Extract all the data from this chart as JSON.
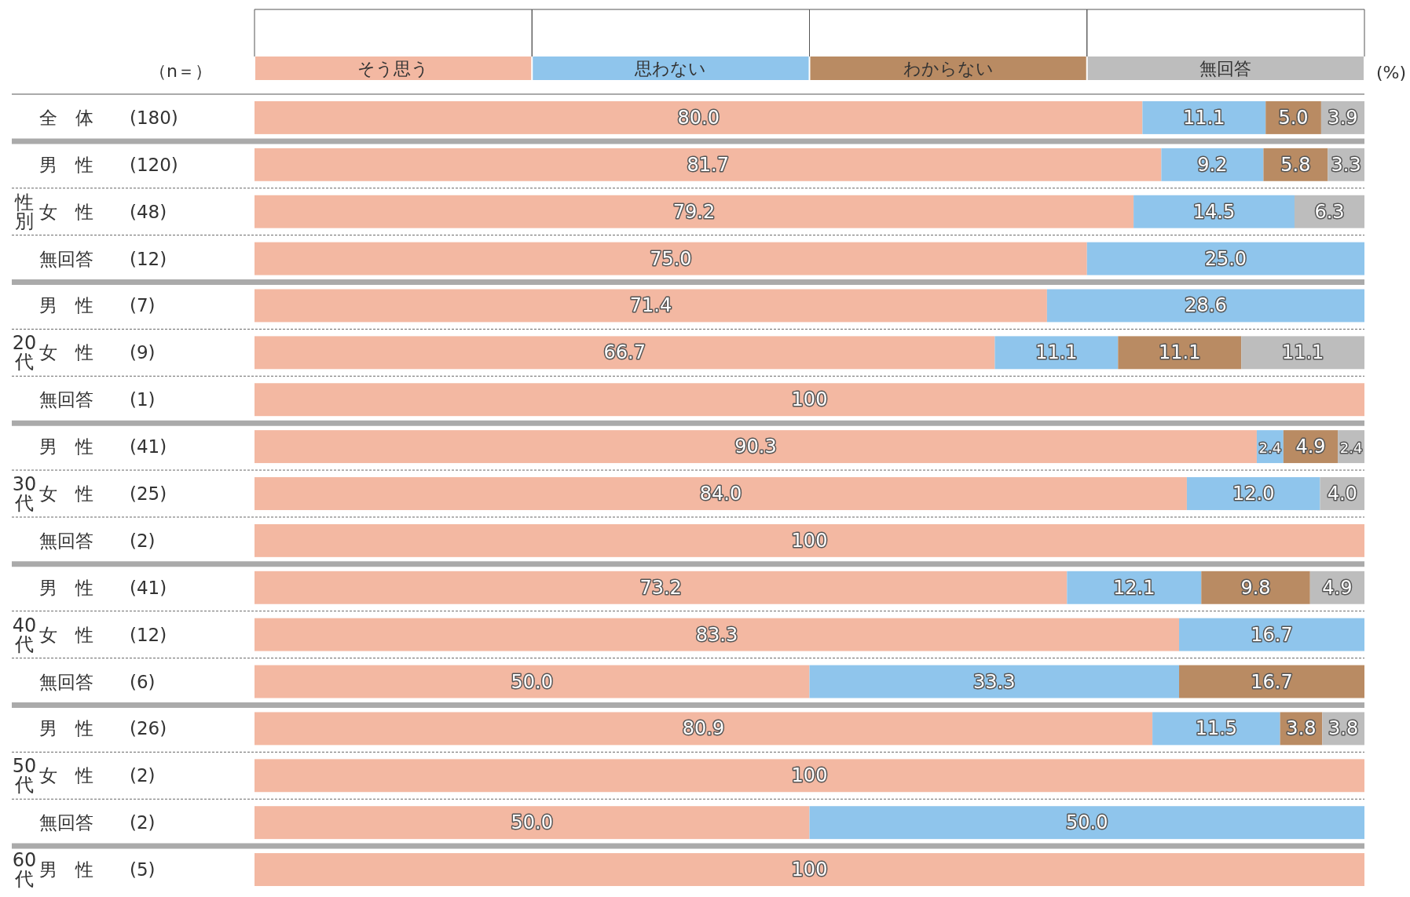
{
  "chart_data": {
    "type": "bar",
    "orientation": "horizontal",
    "stacked": true,
    "legend": "top",
    "tick_labels": "y",
    "xlim": [
      0,
      100
    ],
    "categories": [
      "全　体　　(180)",
      "男　性　　(120)",
      "女　性　　(48)",
      "無回答　　(12)",
      "男　性　　(7)",
      "女　性　　(9)",
      "無回答　　(1)",
      "男　性　　(41)",
      "女　性　　(25)",
      "無回答　　(2)",
      "男　性　　(41)",
      "女　性　　(12)",
      "無回答　　(6)",
      "男　性　　(26)",
      "女　性　　(2)",
      "無回答　　(2)",
      "男　性　　(5)"
    ],
    "series": [
      {
        "name": "そう思う",
        "color": "#f3b8a2",
        "values": [
          80.0,
          81.7,
          79.2,
          75.0,
          71.4,
          66.7,
          100,
          90.3,
          84.0,
          100,
          73.2,
          83.3,
          50.0,
          80.9,
          100,
          50.0,
          100
        ],
        "value_labels": [
          "80.0",
          "81.7",
          "79.2",
          "75.0",
          "71.4",
          "66.7",
          "100",
          "90.3",
          "84.0",
          "100",
          "73.2",
          "83.3",
          "50.0",
          "80.9",
          "100",
          "50.0",
          "100"
        ]
      },
      {
        "name": "思わない",
        "color": "#8fc5ec",
        "values": [
          11.1,
          9.2,
          14.5,
          25.0,
          28.6,
          11.1,
          null,
          2.4,
          12.0,
          null,
          12.1,
          16.7,
          33.3,
          11.5,
          null,
          50.0,
          null
        ],
        "value_labels": [
          "11.1",
          "9.2",
          "14.5",
          "25.0",
          "28.6",
          "11.1",
          null,
          "2.4",
          "12.0",
          null,
          "12.1",
          "16.7",
          "33.3",
          "11.5",
          null,
          "50.0",
          null
        ]
      },
      {
        "name": "わからない",
        "color": "#b98b63",
        "values": [
          5.0,
          5.8,
          null,
          null,
          null,
          11.1,
          null,
          4.9,
          null,
          null,
          9.8,
          null,
          16.7,
          3.8,
          null,
          null,
          null
        ],
        "value_labels": [
          "5.0",
          "5.8",
          null,
          null,
          null,
          "11.1",
          null,
          "4.9",
          null,
          null,
          "9.8",
          null,
          "16.7",
          "3.8",
          null,
          null,
          null
        ]
      },
      {
        "name": "無回答",
        "color": "#bdbdbd",
        "values": [
          3.9,
          3.3,
          6.3,
          null,
          null,
          11.1,
          null,
          2.4,
          4.0,
          null,
          4.9,
          null,
          null,
          3.8,
          null,
          null,
          null
        ],
        "value_labels": [
          "3.9",
          "3.3",
          "6.3",
          null,
          null,
          "11.1",
          null,
          "2.4",
          "4.0",
          null,
          "4.9",
          null,
          null,
          "3.8",
          null,
          null,
          null
        ]
      }
    ],
    "annotations": [
      "（n＝）",
      "(%)",
      "性別",
      "20代",
      "30代",
      "40代",
      "50代",
      "60代"
    ]
  }
}
